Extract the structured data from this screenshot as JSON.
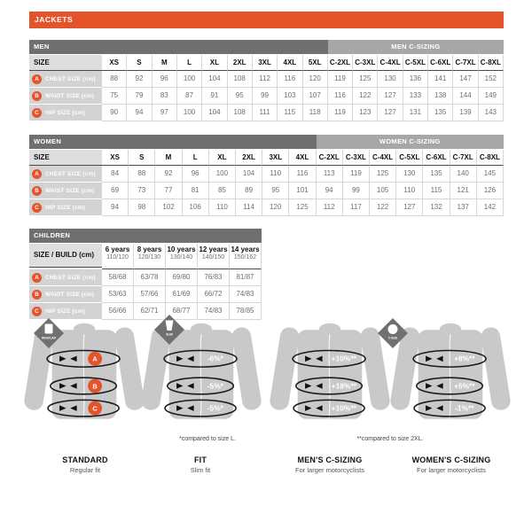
{
  "page_title": "JACKETS",
  "colors": {
    "orange": "#E4532A",
    "header_dark": "#6F6F6F",
    "header_light": "#A7A7A7",
    "label_bg": "#D3D3D3",
    "value_text": "#6E6E6E",
    "silhouette": "#C9C9C9",
    "band_stroke": "#1A1A1A"
  },
  "tables": {
    "men": {
      "group_label": "MEN",
      "csizing_label": "MEN C-SIZING",
      "size_label": "SIZE",
      "regular_cols": [
        "XS",
        "S",
        "M",
        "L",
        "XL",
        "2XL",
        "3XL",
        "4XL",
        "5XL"
      ],
      "csizing_cols": [
        "C-2XL",
        "C-3XL",
        "C-4XL",
        "C-5XL",
        "C-6XL",
        "C-7XL",
        "C-8XL"
      ],
      "rows": [
        {
          "letter": "A",
          "label": "CHEST SIZE (cm)",
          "values": [
            "88",
            "92",
            "96",
            "100",
            "104",
            "108",
            "112",
            "116",
            "120",
            "119",
            "125",
            "130",
            "136",
            "141",
            "147",
            "152"
          ]
        },
        {
          "letter": "B",
          "label": "WAIST SIZE (cm)",
          "values": [
            "75",
            "79",
            "83",
            "87",
            "91",
            "95",
            "99",
            "103",
            "107",
            "116",
            "122",
            "127",
            "133",
            "138",
            "144",
            "149"
          ]
        },
        {
          "letter": "C",
          "label": "HIP SIZE (cm)",
          "values": [
            "90",
            "94",
            "97",
            "100",
            "104",
            "108",
            "111",
            "115",
            "118",
            "119",
            "123",
            "127",
            "131",
            "135",
            "139",
            "143"
          ]
        }
      ]
    },
    "women": {
      "group_label": "WOMEN",
      "csizing_label": "WOMEN C-SIZING",
      "size_label": "SIZE",
      "regular_cols": [
        "XS",
        "S",
        "M",
        "L",
        "XL",
        "2XL",
        "3XL",
        "4XL"
      ],
      "csizing_cols": [
        "C-2XL",
        "C-3XL",
        "C-4XL",
        "C-5XL",
        "C-6XL",
        "C-7XL",
        "C-8XL"
      ],
      "rows": [
        {
          "letter": "A",
          "label": "CHEST SIZE (cm)",
          "values": [
            "84",
            "88",
            "92",
            "96",
            "100",
            "104",
            "110",
            "116",
            "113",
            "119",
            "125",
            "130",
            "135",
            "140",
            "145"
          ]
        },
        {
          "letter": "B",
          "label": "WAIST SIZE (cm)",
          "values": [
            "69",
            "73",
            "77",
            "81",
            "85",
            "89",
            "95",
            "101",
            "94",
            "99",
            "105",
            "110",
            "115",
            "121",
            "126"
          ]
        },
        {
          "letter": "C",
          "label": "HIP SIZE (cm)",
          "values": [
            "94",
            "98",
            "102",
            "106",
            "110",
            "114",
            "120",
            "125",
            "112",
            "117",
            "122",
            "127",
            "132",
            "137",
            "142"
          ]
        }
      ]
    },
    "children": {
      "group_label": "CHILDREN",
      "size_label": "SIZE / BUILD (cm)",
      "cols": [
        {
          "age": "6 years",
          "build": "110/120"
        },
        {
          "age": "8 years",
          "build": "120/130"
        },
        {
          "age": "10 years",
          "build": "130/140"
        },
        {
          "age": "12 years",
          "build": "140/150"
        },
        {
          "age": "14 years",
          "build": "150/162"
        }
      ],
      "rows": [
        {
          "letter": "A",
          "label": "CHEST SIZE (cm)",
          "values": [
            "58/68",
            "63/78",
            "69/80",
            "76/83",
            "81/87"
          ]
        },
        {
          "letter": "B",
          "label": "WAIST SIZE (cm)",
          "values": [
            "53/63",
            "57/66",
            "61/69",
            "66/72",
            "74/83"
          ]
        },
        {
          "letter": "C",
          "label": "HIP SIZE (cm)",
          "values": [
            "56/66",
            "62/71",
            "68/77",
            "74/83",
            "78/85"
          ]
        }
      ]
    }
  },
  "figures": [
    {
      "title": "STANDARD",
      "subtitle": "Regular fit",
      "bands": [
        "A",
        "B",
        "C"
      ]
    },
    {
      "title": "FIT",
      "subtitle": "Slim fit",
      "note": "*compared to size L.",
      "bands": [
        "-6%*",
        "-5%*",
        "-5%*"
      ]
    },
    {
      "title": "MEN'S C-SIZING",
      "subtitle": "For larger motorcyclists",
      "bands": [
        "+10%**",
        "+18%**",
        "+10%**"
      ]
    },
    {
      "title": "WOMEN'S C-SIZING",
      "subtitle": "For larger motorcyclists",
      "note": "**compared to size 2XL.",
      "bands": [
        "+8%**",
        "+5%**",
        "-1%**"
      ]
    }
  ],
  "badges": {
    "regular": "REGULAR",
    "slim": "SLIM",
    "csizing": "C-SIZE"
  }
}
